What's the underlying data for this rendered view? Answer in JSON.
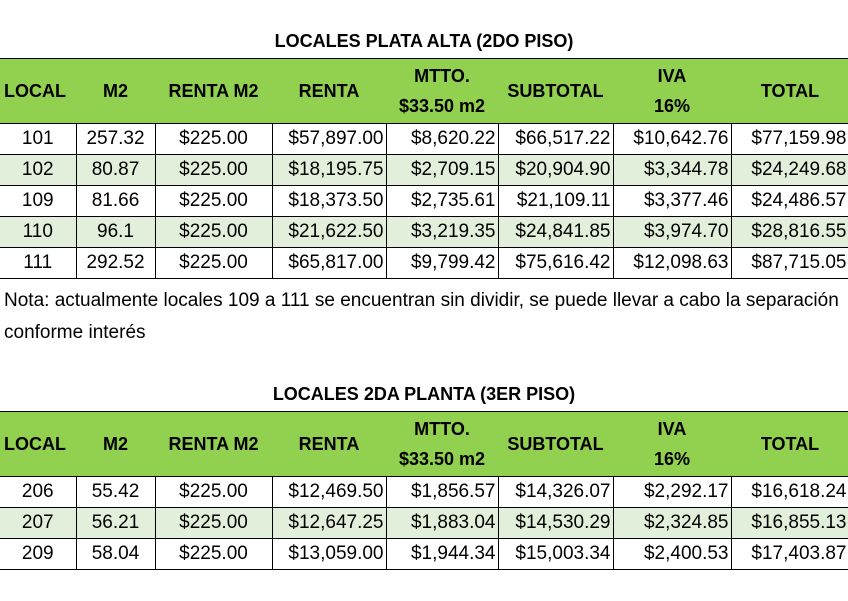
{
  "section1": {
    "title": "LOCALES PLATA ALTA (2DO PISO)",
    "headers": [
      {
        "line1": "LOCAL",
        "line2": ""
      },
      {
        "line1": "M2",
        "line2": ""
      },
      {
        "line1": "RENTA M2",
        "line2": ""
      },
      {
        "line1": "RENTA",
        "line2": ""
      },
      {
        "line1": "MTTO.",
        "line2": "$33.50 m2"
      },
      {
        "line1": "SUBTOTAL",
        "line2": ""
      },
      {
        "line1": "IVA",
        "line2": "16%"
      },
      {
        "line1": "TOTAL",
        "line2": ""
      }
    ],
    "rows": [
      [
        "101",
        "257.32",
        "$225.00",
        "$57,897.00",
        "$8,620.22",
        "$66,517.22",
        "$10,642.76",
        "$77,159.98"
      ],
      [
        "102",
        "80.87",
        "$225.00",
        "$18,195.75",
        "$2,709.15",
        "$20,904.90",
        "$3,344.78",
        "$24,249.68"
      ],
      [
        "109",
        "81.66",
        "$225.00",
        "$18,373.50",
        "$2,735.61",
        "$21,109.11",
        "$3,377.46",
        "$24,486.57"
      ],
      [
        "110",
        "96.1",
        "$225.00",
        "$21,622.50",
        "$3,219.35",
        "$24,841.85",
        "$3,974.70",
        "$28,816.55"
      ],
      [
        "111",
        "292.52",
        "$225.00",
        "$65,817.00",
        "$9,799.42",
        "$75,616.42",
        "$12,098.63",
        "$87,715.05"
      ]
    ]
  },
  "note": "Nota: actualmente locales 109 a 111 se encuentran sin  dividir, se puede llevar a cabo la separación conforme interés",
  "section2": {
    "title": "LOCALES 2DA PLANTA (3ER PISO)",
    "headers": [
      {
        "line1": "LOCAL",
        "line2": ""
      },
      {
        "line1": "M2",
        "line2": ""
      },
      {
        "line1": "RENTA M2",
        "line2": ""
      },
      {
        "line1": "RENTA",
        "line2": ""
      },
      {
        "line1": "MTTO.",
        "line2": "$33.50 m2"
      },
      {
        "line1": "SUBTOTAL",
        "line2": ""
      },
      {
        "line1": "IVA",
        "line2": "16%"
      },
      {
        "line1": "TOTAL",
        "line2": ""
      }
    ],
    "rows": [
      [
        "206",
        "55.42",
        "$225.00",
        "$12,469.50",
        "$1,856.57",
        "$14,326.07",
        "$2,292.17",
        "$16,618.24"
      ],
      [
        "207",
        "56.21",
        "$225.00",
        "$12,647.25",
        "$1,883.04",
        "$14,530.29",
        "$2,324.85",
        "$16,855.13"
      ],
      [
        "209",
        "58.04",
        "$225.00",
        "$13,059.00",
        "$1,944.34",
        "$15,003.34",
        "$2,400.53",
        "$17,403.87"
      ]
    ]
  },
  "colors": {
    "header_bg": "#92d050",
    "alt_row_bg": "#e2efda"
  }
}
